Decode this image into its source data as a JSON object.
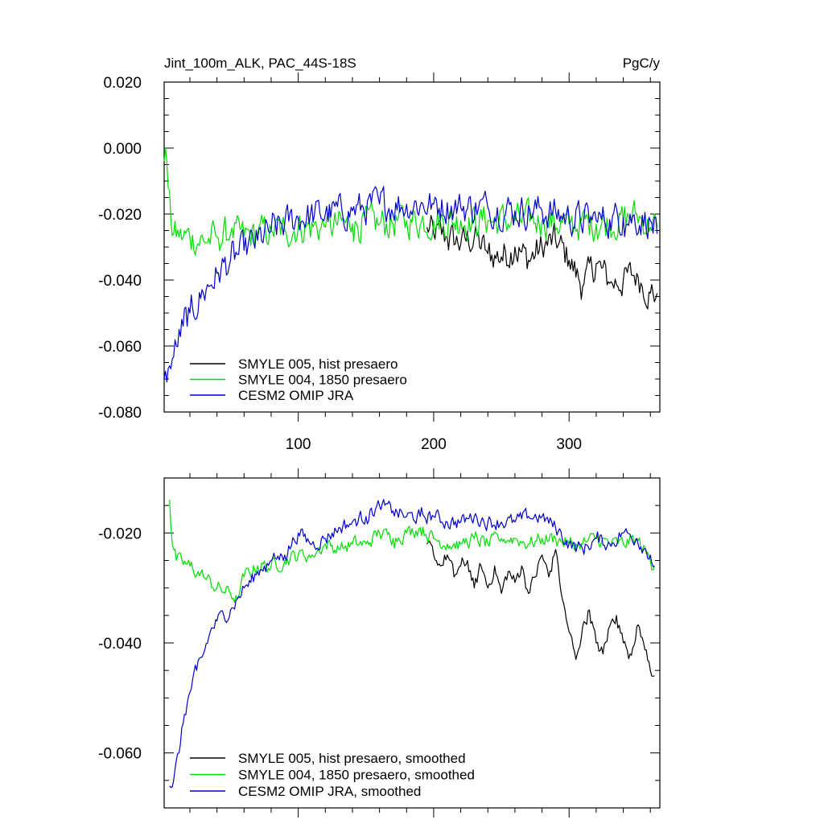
{
  "chart_data": [
    {
      "type": "line",
      "title": "Jint_100m_ALK, PAC_44S-18S",
      "units": "PgC/y",
      "xlabel": "",
      "ylabel": "",
      "xlim": [
        1,
        367
      ],
      "ylim": [
        -0.08,
        0.02
      ],
      "x_ticks": [
        100,
        200,
        300
      ],
      "x_tick_labels": [
        "100",
        "200",
        "300"
      ],
      "y_ticks": [
        -0.08,
        -0.06,
        -0.04,
        -0.02,
        0.0,
        0.02
      ],
      "y_tick_labels": [
        "-0.080",
        "-0.060",
        "-0.040",
        "-0.020",
        "0.000",
        "0.020"
      ],
      "legend_position": "bottom-left",
      "noise": 0.0045,
      "series": [
        {
          "name": "SMYLE 005, hist presaero",
          "color": "#000000",
          "x": [
            195,
            200,
            210,
            220,
            230,
            240,
            250,
            260,
            270,
            280,
            290,
            300,
            310,
            320,
            330,
            340,
            350,
            360,
            365
          ],
          "y": [
            -0.024,
            -0.026,
            -0.027,
            -0.029,
            -0.027,
            -0.032,
            -0.033,
            -0.03,
            -0.034,
            -0.03,
            -0.028,
            -0.034,
            -0.042,
            -0.035,
            -0.041,
            -0.04,
            -0.038,
            -0.044,
            -0.044
          ]
        },
        {
          "name": "SMYLE 004, 1850 presaero",
          "color": "#00dd00",
          "x": [
            1,
            2,
            4,
            6,
            8,
            12,
            20,
            30,
            40,
            50,
            60,
            70,
            80,
            90,
            100,
            120,
            140,
            160,
            180,
            200,
            220,
            240,
            260,
            280,
            300,
            320,
            340,
            350,
            360,
            365
          ],
          "y": [
            -0.004,
            0.0,
            -0.012,
            -0.022,
            -0.026,
            -0.027,
            -0.027,
            -0.028,
            -0.027,
            -0.026,
            -0.027,
            -0.026,
            -0.025,
            -0.025,
            -0.024,
            -0.024,
            -0.023,
            -0.023,
            -0.022,
            -0.022,
            -0.022,
            -0.022,
            -0.022,
            -0.022,
            -0.023,
            -0.023,
            -0.022,
            -0.02,
            -0.024,
            -0.024
          ]
        },
        {
          "name": "CESM2 OMIP JRA",
          "color": "#0000cc",
          "x": [
            1,
            5,
            10,
            15,
            20,
            30,
            40,
            50,
            60,
            70,
            80,
            90,
            100,
            120,
            140,
            160,
            180,
            200,
            220,
            240,
            260,
            280,
            300,
            320,
            340,
            360,
            365
          ],
          "y": [
            -0.07,
            -0.066,
            -0.06,
            -0.054,
            -0.05,
            -0.044,
            -0.038,
            -0.034,
            -0.031,
            -0.028,
            -0.025,
            -0.023,
            -0.021,
            -0.02,
            -0.019,
            -0.017,
            -0.017,
            -0.017,
            -0.018,
            -0.018,
            -0.019,
            -0.019,
            -0.021,
            -0.022,
            -0.021,
            -0.022,
            -0.026
          ]
        }
      ]
    },
    {
      "type": "line",
      "title": "",
      "xlabel": "",
      "ylabel": "",
      "xlim": [
        1,
        367
      ],
      "ylim": [
        -0.07,
        -0.01
      ],
      "x_ticks": [
        100,
        200,
        300
      ],
      "y_ticks": [
        -0.06,
        -0.04,
        -0.02
      ],
      "y_tick_labels": [
        "-0.060",
        "-0.040",
        "-0.020"
      ],
      "legend_position": "bottom-left",
      "noise": 0.0012,
      "series": [
        {
          "name": "SMYLE 005, hist presaero, smoothed",
          "color": "#000000",
          "x": [
            195,
            200,
            205,
            210,
            215,
            220,
            225,
            230,
            235,
            240,
            245,
            250,
            255,
            260,
            265,
            270,
            275,
            280,
            285,
            290,
            295,
            300,
            305,
            310,
            315,
            320,
            325,
            330,
            335,
            340,
            345,
            350,
            355,
            360,
            363
          ],
          "y": [
            -0.022,
            -0.024,
            -0.026,
            -0.024,
            -0.028,
            -0.026,
            -0.025,
            -0.03,
            -0.026,
            -0.03,
            -0.026,
            -0.031,
            -0.027,
            -0.029,
            -0.026,
            -0.031,
            -0.028,
            -0.024,
            -0.028,
            -0.023,
            -0.032,
            -0.038,
            -0.043,
            -0.037,
            -0.034,
            -0.04,
            -0.042,
            -0.037,
            -0.035,
            -0.04,
            -0.042,
            -0.037,
            -0.04,
            -0.045,
            -0.046
          ]
        },
        {
          "name": "SMYLE 004, 1850 presaero, smoothed",
          "color": "#00dd00",
          "x": [
            5,
            7,
            10,
            20,
            30,
            40,
            50,
            55,
            60,
            70,
            80,
            90,
            100,
            110,
            120,
            130,
            140,
            150,
            160,
            170,
            180,
            190,
            200,
            210,
            220,
            230,
            240,
            250,
            260,
            270,
            280,
            290,
            300,
            310,
            320,
            330,
            340,
            350,
            360,
            363
          ],
          "y": [
            -0.014,
            -0.022,
            -0.025,
            -0.026,
            -0.028,
            -0.03,
            -0.031,
            -0.032,
            -0.028,
            -0.026,
            -0.026,
            -0.025,
            -0.024,
            -0.024,
            -0.022,
            -0.023,
            -0.022,
            -0.022,
            -0.02,
            -0.021,
            -0.02,
            -0.019,
            -0.021,
            -0.022,
            -0.022,
            -0.021,
            -0.022,
            -0.021,
            -0.021,
            -0.022,
            -0.021,
            -0.021,
            -0.022,
            -0.022,
            -0.021,
            -0.022,
            -0.022,
            -0.021,
            -0.025,
            -0.026
          ]
        },
        {
          "name": "CESM2 OMIP JRA, smoothed",
          "color": "#0000cc",
          "x": [
            5,
            8,
            12,
            16,
            20,
            25,
            30,
            35,
            40,
            45,
            50,
            55,
            60,
            65,
            70,
            75,
            80,
            90,
            100,
            110,
            120,
            130,
            140,
            150,
            160,
            170,
            180,
            190,
            200,
            210,
            220,
            230,
            240,
            250,
            260,
            270,
            280,
            290,
            300,
            310,
            320,
            330,
            340,
            350,
            360,
            363
          ],
          "y": [
            -0.066,
            -0.065,
            -0.06,
            -0.053,
            -0.049,
            -0.045,
            -0.042,
            -0.038,
            -0.036,
            -0.035,
            -0.034,
            -0.032,
            -0.03,
            -0.029,
            -0.027,
            -0.026,
            -0.025,
            -0.024,
            -0.02,
            -0.022,
            -0.021,
            -0.019,
            -0.018,
            -0.017,
            -0.015,
            -0.016,
            -0.017,
            -0.017,
            -0.017,
            -0.018,
            -0.018,
            -0.017,
            -0.018,
            -0.018,
            -0.018,
            -0.017,
            -0.017,
            -0.019,
            -0.022,
            -0.023,
            -0.021,
            -0.022,
            -0.02,
            -0.021,
            -0.024,
            -0.026
          ]
        }
      ]
    }
  ]
}
